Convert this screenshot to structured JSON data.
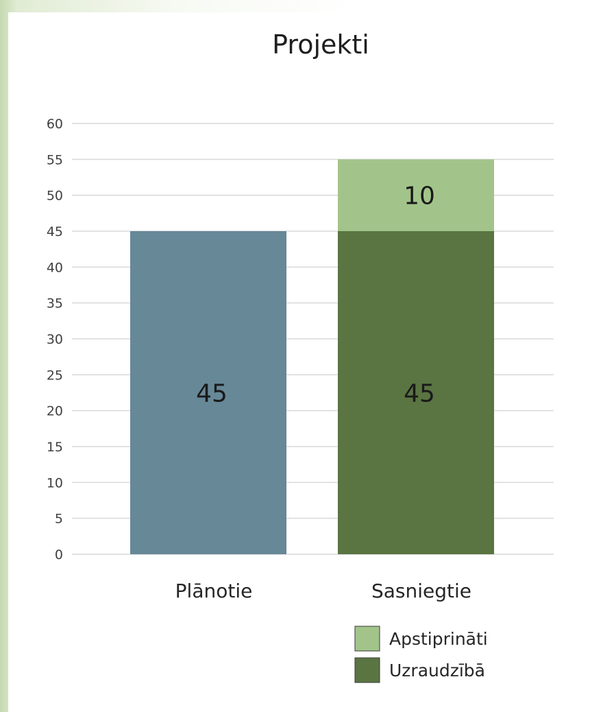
{
  "chart_data": {
    "type": "bar",
    "stacked": true,
    "title": "Projekti",
    "categories": [
      "Plānotie",
      "Sasniegtie"
    ],
    "series": [
      {
        "name": "",
        "values": [
          45,
          null
        ],
        "color": "#678897"
      },
      {
        "name": "Uzraudzībā",
        "values": [
          null,
          45
        ],
        "color": "#5a7442"
      },
      {
        "name": "Apstiprināti",
        "values": [
          null,
          10
        ],
        "color": "#a2c48a"
      }
    ],
    "data_labels": [
      {
        "category": "Plānotie",
        "series": 0,
        "text": "45"
      },
      {
        "category": "Sasniegtie",
        "series": 1,
        "text": "45"
      },
      {
        "category": "Sasniegtie",
        "series": 2,
        "text": "10"
      }
    ],
    "ylim": [
      0,
      60
    ],
    "yticks": [
      "0",
      "5",
      "10",
      "15",
      "20",
      "25",
      "30",
      "35",
      "40",
      "45",
      "50",
      "55",
      "60"
    ],
    "grid": true,
    "legend": {
      "placement": "bottom-right",
      "entries": [
        {
          "label": "Apstiprināti",
          "color": "#a2c48a"
        },
        {
          "label": "Uzraudzībā",
          "color": "#5a7442"
        }
      ]
    }
  }
}
